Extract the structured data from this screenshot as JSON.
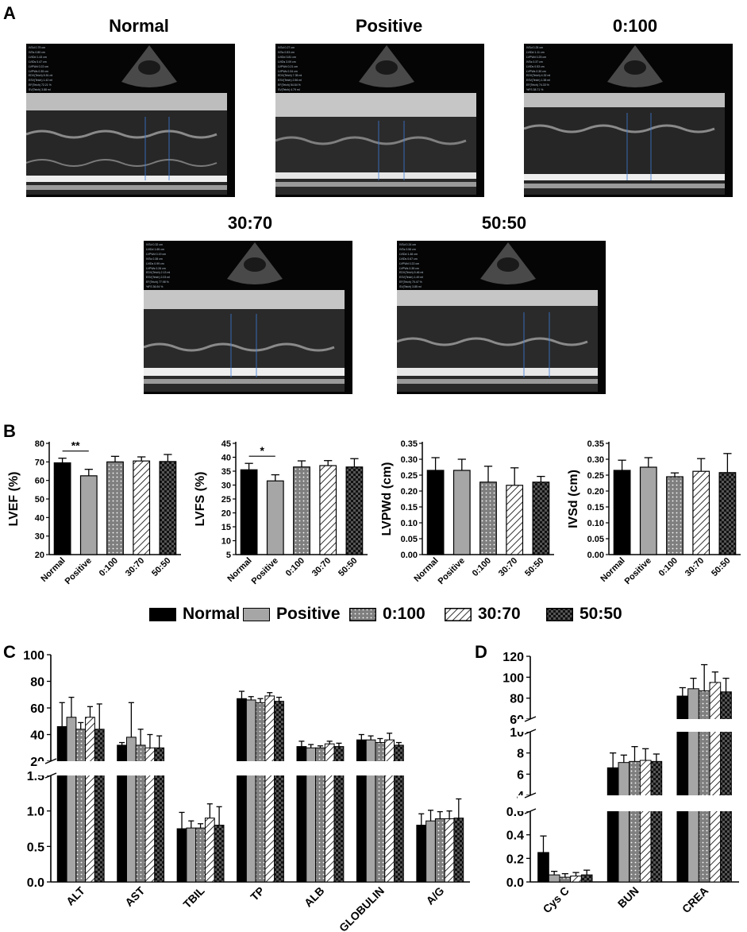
{
  "panels": {
    "a": "A",
    "b": "B",
    "c": "C",
    "d": "D"
  },
  "groups": [
    "Normal",
    "Positive",
    "0:100",
    "30:70",
    "50:50"
  ],
  "colors": {
    "normal": "#000000",
    "positive": "#a6a6a6",
    "g0_100": "#7f7f7f",
    "g30_70": "#ffffff",
    "g50_50": "#2b2b2b"
  },
  "echo": [
    {
      "title": "Normal",
      "params": [
        "IVSd 0.79 cm",
        "IVSs 0.80 cm",
        "LVIDd 1.43 cm",
        "LVIDs 0.47 cm",
        "LVPWd 0.22 cm",
        "LVPWs 0.35 cm",
        "EDV(Teich) 5.51 ml",
        "ESV(Teich) 1.42 ml",
        "EF(Teich) 72.21 %",
        "SV(Teich) 3.88 ml",
        "%FS 33.55 %",
        "RWT 0.31"
      ]
    },
    {
      "title": "Positive",
      "params": [
        "IVSd 0.27 cm",
        "IVSs 0.53 cm",
        "LVIDd 3.81 cm",
        "LVIDs 3.09 cm",
        "LVPWd 0.21 cm",
        "LVPWs 0.34 cm",
        "EDV(Teich) 7.35 ml",
        "ESV(Teich) 2.56 ml",
        "EF(Teich) 54.54 %",
        "SV(Teich) 4.79 ml",
        "%FS 27.35 %",
        "RWT 0.31"
      ]
    },
    {
      "title": "0:100",
      "params": [
        "IVSd 0.25 cm",
        "LVIDd 1.11 cm",
        "LVPWd 0.25 cm",
        "IVSs 0.37 cm",
        "LVIDs 0.53 cm",
        "LVPWs 0.30 cm",
        "EDV(Teich) 4.32 ml",
        "ESV(Teich) 1.38 ml",
        "EF(Teich) 74.33 %",
        "%FS 38.71 %",
        "SV(Teich) 4.54 ml",
        "RWT 0.31"
      ]
    },
    {
      "title": "30:70",
      "params": [
        "IVSd 0.32 cm",
        "LVIDd 1.65 cm",
        "LVPWd 0.19 cm",
        "IVSs 0.38 cm",
        "LVIDs 0.99 cm",
        "LVPWs 0.26 cm",
        "EDV(Teich) 2.13 ml",
        "ESV(Teich) 2.03 ml",
        "EF(Teich) 77.98 %",
        "%FS 36.94 %",
        "SV(Teich) 5.48 ml",
        "RWT 0.23"
      ]
    },
    {
      "title": "50:50",
      "params": [
        "IVSd 0.24 cm",
        "IVSs 0.56 cm",
        "LVIDd 1.46 cm",
        "LVIDs 0.67 cm",
        "LVPWd 0.22 cm",
        "LVPWs 0.35 cm",
        "EDV(Teich) 5.46 ml",
        "ESV(Teich) 1.49 ml",
        "EF(Teich) 70.47 %",
        "SV(Teich) 3.85 ml",
        "%FS 36.61 %",
        "RWT 0.30"
      ]
    }
  ],
  "chart_data": [
    {
      "type": "bar",
      "panel": "B",
      "ylabel": "LVEF (%)",
      "categories": [
        "Normal",
        "Positive",
        "0:100",
        "30:70",
        "50:50"
      ],
      "values": [
        69.5,
        62.5,
        70,
        70.5,
        70.2
      ],
      "errors": [
        2.5,
        3.5,
        3,
        2.2,
        3.8
      ],
      "ylim": [
        20,
        80
      ],
      "yticks": [
        "20",
        "30",
        "40",
        "50",
        "60",
        "70",
        "80"
      ],
      "significance": {
        "from": "Normal",
        "to": "Positive",
        "label": "**"
      }
    },
    {
      "type": "bar",
      "panel": "B",
      "ylabel": "LVFS (%)",
      "categories": [
        "Normal",
        "Positive",
        "0:100",
        "30:70",
        "50:50"
      ],
      "values": [
        35.5,
        31.5,
        36.5,
        37,
        36.5
      ],
      "errors": [
        2.3,
        2.2,
        2.2,
        1.8,
        3
      ],
      "ylim": [
        5,
        45
      ],
      "yticks": [
        "5",
        "10",
        "15",
        "20",
        "25",
        "30",
        "35",
        "40",
        "45"
      ],
      "significance": {
        "from": "Normal",
        "to": "Positive",
        "label": "*"
      }
    },
    {
      "type": "bar",
      "panel": "B",
      "ylabel": "LVPWd (cm)",
      "categories": [
        "Normal",
        "Positive",
        "0:100",
        "30:70",
        "50:50"
      ],
      "values": [
        0.265,
        0.265,
        0.228,
        0.218,
        0.228
      ],
      "errors": [
        0.04,
        0.035,
        0.05,
        0.055,
        0.018
      ],
      "ylim": [
        0,
        0.35
      ],
      "yticks": [
        "0.00",
        "0.05",
        "0.10",
        "0.15",
        "0.20",
        "0.25",
        "0.30",
        "0.35"
      ]
    },
    {
      "type": "bar",
      "panel": "B",
      "ylabel": "IVSd (cm)",
      "categories": [
        "Normal",
        "Positive",
        "0:100",
        "30:70",
        "50:50"
      ],
      "values": [
        0.265,
        0.275,
        0.245,
        0.262,
        0.258
      ],
      "errors": [
        0.032,
        0.03,
        0.012,
        0.04,
        0.06
      ],
      "ylim": [
        0,
        0.35
      ],
      "yticks": [
        "0.00",
        "0.05",
        "0.10",
        "0.15",
        "0.20",
        "0.25",
        "0.30",
        "0.35"
      ]
    },
    {
      "type": "bar",
      "panel": "C",
      "ylabel": "",
      "categories": [
        "ALT",
        "AST",
        "TBIL",
        "TP",
        "ALB",
        "GLOBULIN",
        "A/G"
      ],
      "series": [
        {
          "name": "Normal",
          "values": [
            46,
            32,
            0.75,
            67,
            31,
            36,
            0.8
          ],
          "errors": [
            18,
            2,
            0.23,
            5.5,
            4,
            4,
            0.16
          ]
        },
        {
          "name": "Positive",
          "values": [
            53,
            38,
            0.76,
            66,
            30,
            36,
            0.86
          ],
          "errors": [
            15,
            26,
            0.1,
            2.5,
            2.5,
            3,
            0.15
          ]
        },
        {
          "name": "0:100",
          "values": [
            44,
            32,
            0.76,
            64,
            30,
            34,
            0.89
          ],
          "errors": [
            5,
            12,
            0.06,
            3,
            1.5,
            3,
            0.1
          ]
        },
        {
          "name": "30:70",
          "values": [
            53,
            30,
            0.9,
            69,
            33,
            36,
            0.89
          ],
          "errors": [
            8,
            10,
            0.2,
            2.5,
            2,
            5,
            0.11
          ]
        },
        {
          "name": "50:50",
          "values": [
            44,
            30,
            0.8,
            65,
            31,
            32,
            0.9
          ],
          "errors": [
            19,
            9,
            0.26,
            3,
            2.5,
            2,
            0.27
          ]
        }
      ],
      "axis_break": {
        "lower": [
          0,
          1.5
        ],
        "upper": [
          20,
          100
        ]
      },
      "yticks_lower": [
        "0.0",
        "0.5",
        "1.0",
        "1.5"
      ],
      "yticks_upper": [
        "20",
        "40",
        "60",
        "80",
        "100"
      ]
    },
    {
      "type": "bar",
      "panel": "D",
      "ylabel": "",
      "categories": [
        "Cys C",
        "BUN",
        "CREA"
      ],
      "series": [
        {
          "name": "Normal",
          "values": [
            0.25,
            6.6,
            82
          ],
          "errors": [
            0.14,
            1.4,
            8
          ]
        },
        {
          "name": "Positive",
          "values": [
            0.06,
            7.1,
            89
          ],
          "errors": [
            0.03,
            0.7,
            10
          ]
        },
        {
          "name": "0:100",
          "values": [
            0.04,
            7.2,
            87
          ],
          "errors": [
            0.03,
            1.4,
            25
          ]
        },
        {
          "name": "30:70",
          "values": [
            0.05,
            7.3,
            95
          ],
          "errors": [
            0.03,
            1.1,
            10
          ]
        },
        {
          "name": "50:50",
          "values": [
            0.06,
            7.2,
            86
          ],
          "errors": [
            0.04,
            0.7,
            13
          ]
        }
      ],
      "axis_break": {
        "low": [
          0,
          0.6
        ],
        "mid": [
          4,
          10
        ],
        "high": [
          60,
          120
        ]
      },
      "yticks_low": [
        "0.0",
        "0.2",
        "0.4",
        "0.6"
      ],
      "yticks_mid": [
        "4",
        "6",
        "8",
        "10"
      ],
      "yticks_high": [
        "60",
        "80",
        "100",
        "120"
      ]
    }
  ]
}
